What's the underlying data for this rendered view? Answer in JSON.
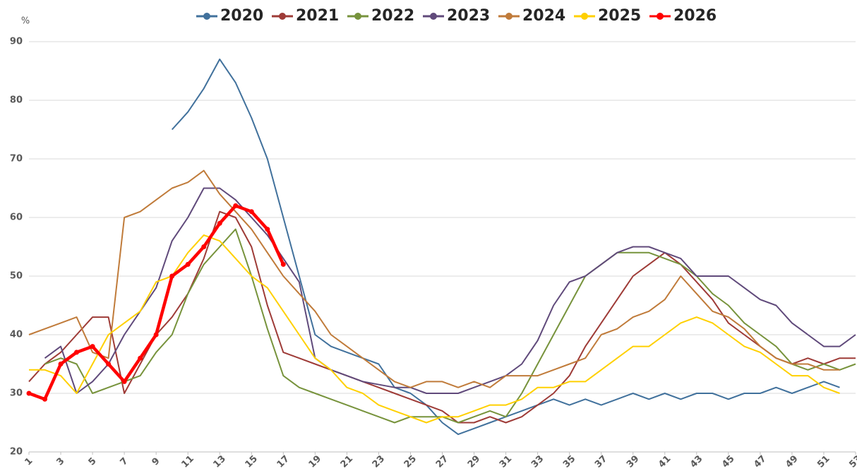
{
  "chart_data": {
    "type": "line",
    "y_unit": "%",
    "x": [
      1,
      2,
      3,
      4,
      5,
      6,
      7,
      8,
      9,
      10,
      11,
      12,
      13,
      14,
      15,
      16,
      17,
      18,
      19,
      20,
      21,
      22,
      23,
      24,
      25,
      26,
      27,
      28,
      29,
      30,
      31,
      32,
      33,
      34,
      35,
      36,
      37,
      38,
      39,
      40,
      41,
      42,
      43,
      44,
      45,
      46,
      47,
      48,
      49,
      50,
      51,
      52,
      53
    ],
    "xlim": [
      1,
      53
    ],
    "xticks": [
      1,
      3,
      5,
      7,
      9,
      11,
      13,
      15,
      17,
      19,
      21,
      23,
      25,
      27,
      29,
      31,
      33,
      35,
      37,
      39,
      41,
      43,
      45,
      47,
      49,
      51,
      53
    ],
    "ylim": [
      20,
      90
    ],
    "yticks": [
      20,
      30,
      40,
      50,
      60,
      70,
      80,
      90
    ],
    "grid": true,
    "legend": "top",
    "series": [
      {
        "name": "2020",
        "color": "#41719c",
        "markers": false,
        "values": [
          null,
          null,
          null,
          null,
          null,
          null,
          null,
          null,
          null,
          75,
          78,
          82,
          87,
          83,
          77,
          70,
          60,
          50,
          40,
          38,
          37,
          36,
          35,
          31,
          30,
          28,
          25,
          23,
          24,
          25,
          26,
          27,
          28,
          29,
          28,
          29,
          28,
          29,
          30,
          29,
          30,
          29,
          30,
          30,
          29,
          30,
          30,
          31,
          30,
          31,
          32,
          31,
          null
        ]
      },
      {
        "name": "2021",
        "color": "#9e3b37",
        "markers": false,
        "values": [
          32,
          35,
          37,
          40,
          43,
          43,
          30,
          35,
          40,
          43,
          47,
          53,
          61,
          60,
          55,
          45,
          37,
          36,
          35,
          34,
          33,
          32,
          31,
          30,
          29,
          28,
          27,
          25,
          25,
          26,
          25,
          26,
          28,
          30,
          33,
          38,
          42,
          46,
          50,
          52,
          54,
          52,
          49,
          46,
          42,
          40,
          38,
          36,
          35,
          36,
          35,
          36,
          36
        ]
      },
      {
        "name": "2022",
        "color": "#77933c",
        "markers": false,
        "values": [
          null,
          35,
          36,
          35,
          30,
          31,
          32,
          33,
          37,
          40,
          47,
          52,
          55,
          58,
          50,
          41,
          33,
          31,
          30,
          29,
          28,
          27,
          26,
          25,
          26,
          26,
          26,
          25,
          26,
          27,
          26,
          30,
          35,
          40,
          45,
          50,
          52,
          54,
          54,
          54,
          53,
          52,
          50,
          47,
          45,
          42,
          40,
          38,
          35,
          34,
          35,
          34,
          35
        ]
      },
      {
        "name": "2023",
        "color": "#604a7b",
        "markers": false,
        "values": [
          null,
          36,
          38,
          30,
          32,
          35,
          40,
          44,
          48,
          56,
          60,
          65,
          65,
          63,
          60,
          57,
          53,
          49,
          36,
          34,
          33,
          32,
          31.5,
          31,
          31,
          30,
          30,
          30,
          31,
          32,
          33,
          35,
          39,
          45,
          49,
          50,
          52,
          54,
          55,
          55,
          54,
          53,
          50,
          50,
          50,
          48,
          46,
          45,
          42,
          40,
          38,
          38,
          40
        ]
      },
      {
        "name": "2024",
        "color": "#c07b3a",
        "markers": false,
        "values": [
          40,
          41,
          42,
          43,
          37,
          36,
          60,
          61,
          63,
          65,
          66,
          68,
          64,
          61,
          58,
          54,
          50,
          47,
          44,
          40,
          38,
          36,
          34,
          32,
          31,
          32,
          32,
          31,
          32,
          31,
          33,
          33,
          33,
          34,
          35,
          36,
          40,
          41,
          43,
          44,
          46,
          50,
          47,
          44,
          43,
          41,
          38,
          36,
          35,
          35,
          34,
          34,
          null
        ]
      },
      {
        "name": "2025",
        "color": "#ffd000",
        "markers": false,
        "values": [
          34,
          34,
          33,
          30,
          35,
          40,
          42,
          44,
          49,
          50,
          54,
          57,
          56,
          53,
          50,
          48,
          44,
          40,
          36,
          34,
          31,
          30,
          28,
          27,
          26,
          25,
          26,
          26,
          27,
          28,
          28,
          29,
          31,
          31,
          32,
          32,
          34,
          36,
          38,
          38,
          40,
          42,
          43,
          42,
          40,
          38,
          37,
          35,
          33,
          33,
          31,
          30,
          null
        ]
      },
      {
        "name": "2026",
        "color": "#ff0000",
        "markers": true,
        "values": [
          30,
          29,
          35,
          37,
          38,
          35,
          32,
          36,
          40,
          50,
          52,
          55,
          59,
          62,
          61,
          58,
          52,
          null,
          null,
          null,
          null,
          null,
          null,
          null,
          null,
          null,
          null,
          null,
          null,
          null,
          null,
          null,
          null,
          null,
          null,
          null,
          null,
          null,
          null,
          null,
          null,
          null,
          null,
          null,
          null,
          null,
          null,
          null,
          null,
          null,
          null,
          null,
          null
        ]
      }
    ]
  }
}
